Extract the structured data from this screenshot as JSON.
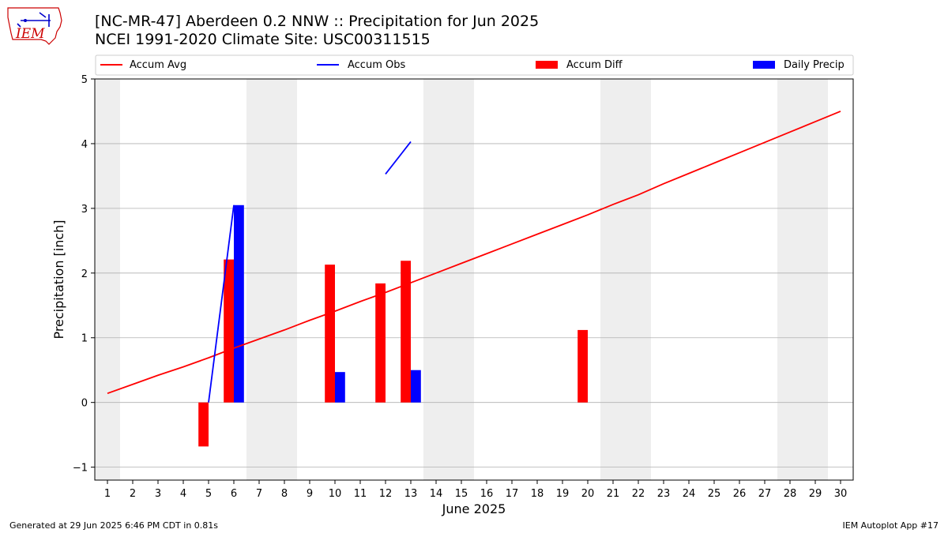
{
  "header": {
    "title_line1": "[NC-MR-47] Aberdeen 0.2 NNW :: Precipitation for Jun 2025",
    "title_line2": "NCEI 1991-2020 Climate Site: USC00311515",
    "logo_text": "IEM"
  },
  "footer": {
    "generated": "Generated at 29 Jun 2025 6:46 PM CDT in 0.81s",
    "app": "IEM Autoplot App #17"
  },
  "colors": {
    "avg": "#ff0000",
    "obs": "#0000ff",
    "diff": "#ff0000",
    "daily": "#0000ff",
    "weekend_band": "#eeeeee",
    "grid": "#b0b0b0"
  },
  "chart_data": {
    "type": "bar",
    "xlabel": "June 2025",
    "ylabel": "Precipitation [inch]",
    "xlim": [
      0.5,
      30.5
    ],
    "ylim": [
      -1.2,
      5
    ],
    "yticks": [
      -1,
      0,
      1,
      2,
      3,
      4,
      5
    ],
    "grid": "y",
    "legend_position": "top",
    "x": [
      1,
      2,
      3,
      4,
      5,
      6,
      7,
      8,
      9,
      10,
      11,
      12,
      13,
      14,
      15,
      16,
      17,
      18,
      19,
      20,
      21,
      22,
      23,
      24,
      25,
      26,
      27,
      28,
      29,
      30
    ],
    "weekend_days": [
      1,
      7,
      8,
      14,
      15,
      21,
      22,
      28,
      29
    ],
    "legend": [
      "Accum Avg",
      "Accum Obs",
      "Accum Diff",
      "Daily Precip"
    ],
    "series": [
      {
        "name": "Accum Avg",
        "type": "line",
        "color": "#ff0000",
        "points": [
          [
            1,
            0.14
          ],
          [
            2,
            0.28
          ],
          [
            3,
            0.42
          ],
          [
            4,
            0.55
          ],
          [
            5,
            0.69
          ],
          [
            6,
            0.84
          ],
          [
            7,
            0.98
          ],
          [
            8,
            1.12
          ],
          [
            9,
            1.27
          ],
          [
            10,
            1.41
          ],
          [
            11,
            1.56
          ],
          [
            12,
            1.7
          ],
          [
            13,
            1.85
          ],
          [
            14,
            2.0
          ],
          [
            15,
            2.15
          ],
          [
            16,
            2.3
          ],
          [
            17,
            2.45
          ],
          [
            18,
            2.6
          ],
          [
            19,
            2.75
          ],
          [
            20,
            2.9
          ],
          [
            21,
            3.06
          ],
          [
            22,
            3.21
          ],
          [
            23,
            3.38
          ],
          [
            24,
            3.54
          ],
          [
            25,
            3.7
          ],
          [
            26,
            3.86
          ],
          [
            27,
            4.02
          ],
          [
            28,
            4.18
          ],
          [
            29,
            4.34
          ],
          [
            30,
            4.5
          ]
        ]
      },
      {
        "name": "Accum Obs",
        "type": "line",
        "color": "#0000ff",
        "segments": [
          [
            [
              5,
              0.0
            ],
            [
              6,
              3.05
            ]
          ],
          [
            [
              12,
              3.53
            ],
            [
              13,
              4.03
            ]
          ]
        ]
      },
      {
        "name": "Accum Diff",
        "type": "bar",
        "color": "#ff0000",
        "points": [
          [
            5,
            -0.68
          ],
          [
            6,
            2.21
          ],
          [
            10,
            2.13
          ],
          [
            12,
            1.84
          ],
          [
            13,
            2.19
          ],
          [
            20,
            1.12
          ]
        ]
      },
      {
        "name": "Daily Precip",
        "type": "bar",
        "color": "#0000ff",
        "points": [
          [
            6,
            3.05
          ],
          [
            10,
            0.47
          ],
          [
            13,
            0.5
          ]
        ]
      }
    ]
  }
}
